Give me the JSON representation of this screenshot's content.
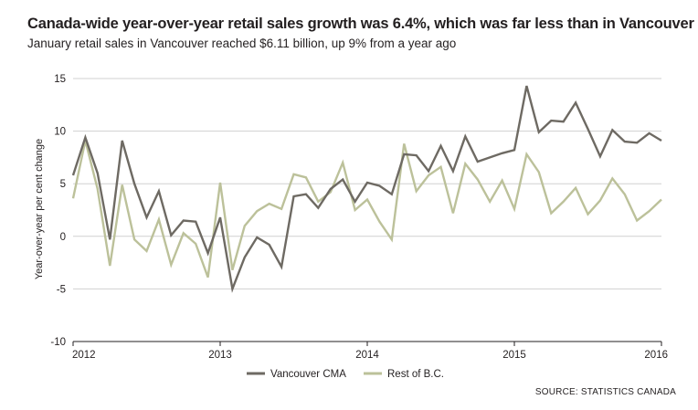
{
  "header": {
    "title": "Canada-wide year-over-year retail sales growth was 6.4%, which was far less than in Vancouver",
    "subtitle": "January retail sales in Vancouver reached $6.11 billion, up 9% from a year ago"
  },
  "footer": {
    "source": "SOURCE: STATISTICS CANADA"
  },
  "colors": {
    "vancouver": "#6e6a63",
    "rest_of_bc": "#bcc19a",
    "grid": "#d0d0d0",
    "axis": "#231f20"
  },
  "chart_data": {
    "type": "line",
    "ylabel": "Year-over-year per cent change",
    "xlabel": "",
    "ylim": [
      -10,
      15
    ],
    "yticks": [
      -10,
      -5,
      0,
      5,
      10,
      15
    ],
    "xlim": [
      "2012-01",
      "2016-01"
    ],
    "xticks": [
      "2012",
      "2013",
      "2014",
      "2015",
      "2016"
    ],
    "grid": true,
    "legend": "bottom-left",
    "x": [
      "2012-01",
      "2012-02",
      "2012-03",
      "2012-04",
      "2012-05",
      "2012-06",
      "2012-07",
      "2012-08",
      "2012-09",
      "2012-10",
      "2012-11",
      "2012-12",
      "2013-01",
      "2013-02",
      "2013-03",
      "2013-04",
      "2013-05",
      "2013-06",
      "2013-07",
      "2013-08",
      "2013-09",
      "2013-10",
      "2013-11",
      "2013-12",
      "2014-01",
      "2014-02",
      "2014-03",
      "2014-04",
      "2014-05",
      "2014-06",
      "2014-07",
      "2014-08",
      "2014-09",
      "2014-10",
      "2014-11",
      "2014-12",
      "2015-01",
      "2015-02",
      "2015-03",
      "2015-04",
      "2015-05",
      "2015-06",
      "2015-07",
      "2015-08",
      "2015-09",
      "2015-10",
      "2015-11",
      "2015-12",
      "2016-01"
    ],
    "series": [
      {
        "name": "Vancouver CMA",
        "values": [
          5.8,
          9.4,
          6.0,
          -0.3,
          9.1,
          5.0,
          1.8,
          4.3,
          0.1,
          1.5,
          1.4,
          -1.6,
          1.8,
          -5.0,
          -2.0,
          -0.1,
          -0.8,
          -2.9,
          3.8,
          4.0,
          2.7,
          4.5,
          5.4,
          3.3,
          5.1,
          4.8,
          4.0,
          7.8,
          7.7,
          6.2,
          8.6,
          6.2,
          9.5,
          7.1,
          7.5,
          7.9,
          8.2,
          14.3,
          9.9,
          11.0,
          10.9,
          12.7,
          10.2,
          7.6,
          10.1,
          9.0,
          8.9,
          9.8,
          9.1
        ]
      },
      {
        "name": "Rest of B.C.",
        "values": [
          3.6,
          9.1,
          4.5,
          -2.8,
          4.9,
          -0.3,
          -1.4,
          1.6,
          -2.7,
          0.3,
          -0.7,
          -3.9,
          5.1,
          -3.2,
          1.0,
          2.4,
          3.1,
          2.6,
          5.9,
          5.6,
          3.3,
          4.2,
          7.0,
          2.5,
          3.5,
          1.4,
          -0.3,
          8.8,
          4.3,
          5.8,
          6.6,
          2.2,
          6.9,
          5.4,
          3.3,
          5.3,
          2.6,
          7.8,
          6.1,
          2.2,
          3.3,
          4.6,
          2.1,
          3.4,
          5.5,
          4.0,
          1.5,
          2.4,
          3.5
        ]
      }
    ]
  }
}
